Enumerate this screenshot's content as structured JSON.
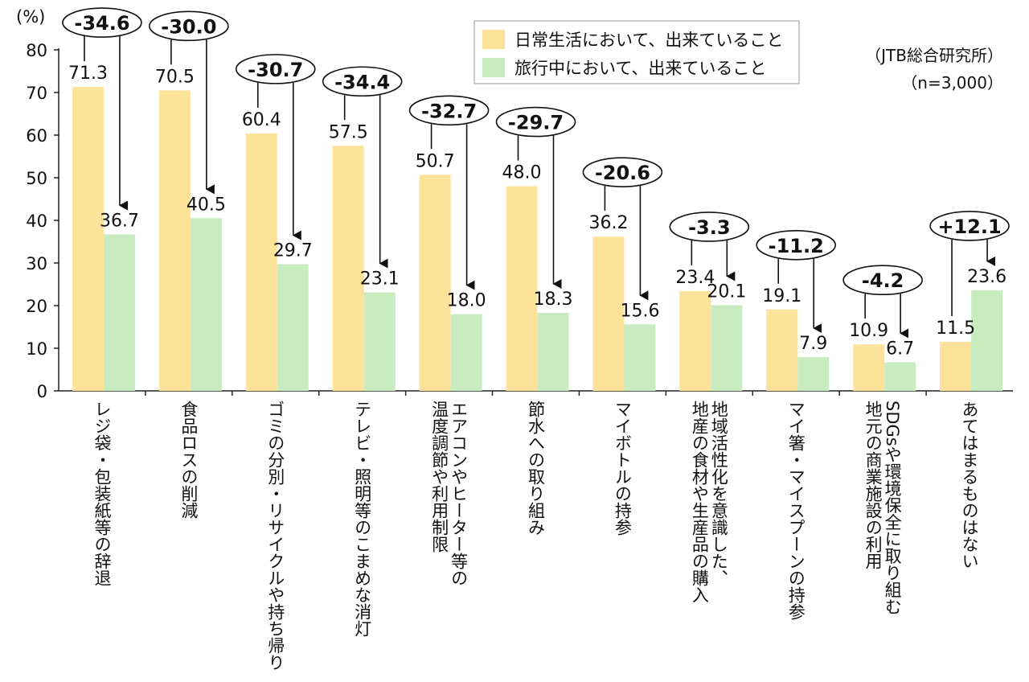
{
  "chart_data": {
    "type": "bar",
    "unit_label": "(%)",
    "ylim": [
      0,
      80
    ],
    "yticks": [
      0,
      10,
      20,
      30,
      40,
      50,
      60,
      70,
      80
    ],
    "categories": [
      [
        "レジ袋・包装紙等の辞退"
      ],
      [
        "食品ロスの削減"
      ],
      [
        "ゴミの分別・リサイクルや持ち帰り"
      ],
      [
        "テレビ・照明等のこまめな消灯"
      ],
      [
        "エアコンやヒーター等の",
        "温度調節や利用制限"
      ],
      [
        "節水への取り組み"
      ],
      [
        "マイボトルの持参"
      ],
      [
        "地域活性化を意識した、",
        "地産の食材や生産品の購入"
      ],
      [
        "マイ箸・マイスプーンの持参"
      ],
      [
        "SDGsや環境保全に取り組む",
        "地元の商業施設の利用"
      ],
      [
        "あてはまるものはない"
      ]
    ],
    "series": [
      {
        "name": "日常生活において、出来ていること",
        "color": "#fde29a",
        "values": [
          71.3,
          70.5,
          60.4,
          57.5,
          50.7,
          48.0,
          36.2,
          23.4,
          19.1,
          10.9,
          11.5
        ]
      },
      {
        "name": "旅行中において、出来ていること",
        "color": "#c8ecc0",
        "values": [
          36.7,
          40.5,
          29.7,
          23.1,
          18.0,
          18.3,
          15.6,
          20.1,
          7.9,
          6.7,
          23.6
        ]
      }
    ],
    "value_labels": [
      [
        "71.3",
        "70.5",
        "60.4",
        "57.5",
        "50.7",
        "48.0",
        "36.2",
        "23.4",
        "19.1",
        "10.9",
        "11.5"
      ],
      [
        "36.7",
        "40.5",
        "29.7",
        "23.1",
        "18.0",
        "18.3",
        "15.6",
        "20.1",
        "7.9",
        "6.7",
        "23.6"
      ]
    ],
    "differences": [
      "-34.6",
      "-30.0",
      "-30.7",
      "-34.4",
      "-32.7",
      "-29.7",
      "-20.6",
      "-3.3",
      "-11.2",
      "-4.2",
      "+12.1"
    ],
    "source_note": "（JTB総合研究所）",
    "sample_note": "（n=3,000）",
    "legend_position": "top-right",
    "grid": false
  }
}
